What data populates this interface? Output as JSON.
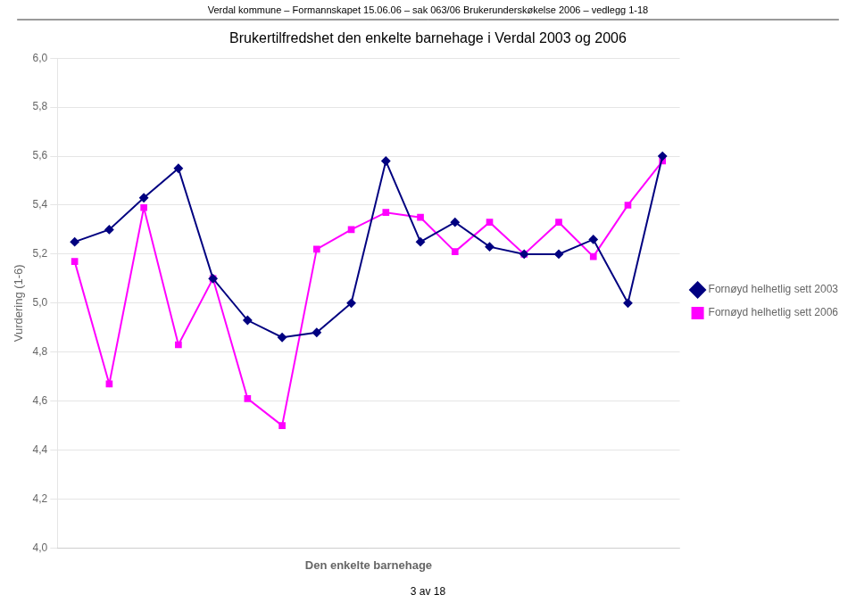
{
  "chart_data": {
    "type": "line",
    "title": "Brukertilfredshet den enkelte barnehage i Verdal 2003 og 2006",
    "annotations": [
      "Verdal kommune – Formannskapet 15.06.06 – sak 063/06 Brukerunderskøkelse 2006 – vedlegg 1-18",
      "3 av 18"
    ],
    "xlabel": "Den enkelte barnehage",
    "ylabel": "Vurdering (1-6)",
    "categories": [
      null,
      null,
      null,
      null,
      null,
      null,
      null,
      null,
      null,
      null,
      null,
      null,
      null,
      null,
      null,
      null,
      null,
      null
    ],
    "series": [
      {
        "name": "Fornøyd helhetlig sett 2003",
        "color": "#000080",
        "marker": "diamond",
        "values": [
          5.25,
          5.3,
          5.43,
          5.55,
          5.1,
          4.93,
          4.86,
          4.88,
          5.0,
          5.58,
          5.25,
          5.33,
          5.23,
          5.2,
          5.2,
          5.26,
          5.0,
          5.6
        ]
      },
      {
        "name": "Fornøyd helhetlig sett 2006",
        "color": "#FF00FF",
        "marker": "square",
        "values": [
          5.17,
          4.67,
          5.39,
          4.83,
          5.1,
          4.61,
          4.5,
          5.22,
          5.3,
          5.37,
          5.35,
          5.21,
          5.33,
          5.2,
          5.33,
          5.19,
          5.4,
          5.58
        ]
      }
    ],
    "ylim": [
      4.0,
      6.0
    ],
    "yticks": [
      {
        "value": 4.0,
        "label": "4,0"
      },
      {
        "value": 4.2,
        "label": "4,2"
      },
      {
        "value": 4.4,
        "label": "4,4"
      },
      {
        "value": 4.6,
        "label": "4,6"
      },
      {
        "value": 4.8,
        "label": "4,8"
      },
      {
        "value": 5.0,
        "label": "5,0"
      },
      {
        "value": 5.2,
        "label": "5,2"
      },
      {
        "value": 5.4,
        "label": "5,4"
      },
      {
        "value": 5.6,
        "label": "5,6"
      },
      {
        "value": 5.8,
        "label": "5,8"
      },
      {
        "value": 6.0,
        "label": "6,0"
      }
    ],
    "grid": true,
    "legend": "right",
    "tick_labels": "y"
  }
}
